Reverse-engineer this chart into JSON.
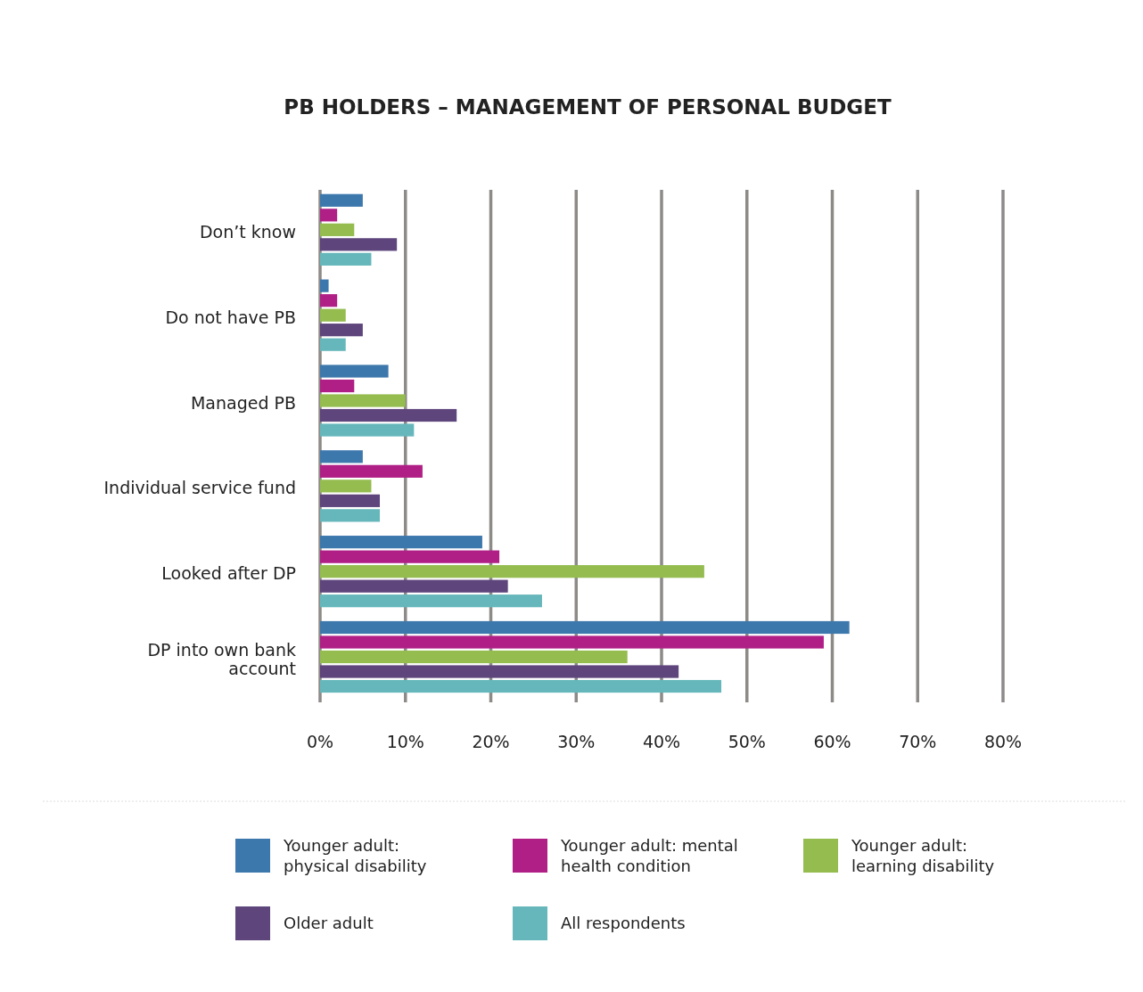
{
  "chart_data": {
    "type": "bar",
    "orientation": "horizontal",
    "title": "PB HOLDERS – MANAGEMENT OF PERSONAL BUDGET",
    "categories": [
      "Don’t know",
      "Do not have PB",
      "Managed PB",
      "Individual service fund",
      "Looked after DP",
      "DP into own bank account"
    ],
    "series": [
      {
        "name": "Younger adult: physical disability",
        "color": "#3d78ad",
        "values": [
          5,
          1,
          8,
          5,
          19,
          62
        ]
      },
      {
        "name": "Younger adult: mental health condition",
        "color": "#b01f86",
        "values": [
          2,
          2,
          4,
          12,
          21,
          59
        ]
      },
      {
        "name": "Younger adult: learning disability",
        "color": "#94bc4f",
        "values": [
          4,
          3,
          10,
          6,
          45,
          36
        ]
      },
      {
        "name": "Older adult",
        "color": "#5e457c",
        "values": [
          9,
          5,
          16,
          7,
          22,
          42
        ]
      },
      {
        "name": "All respondents",
        "color": "#66b7bb",
        "values": [
          6,
          3,
          11,
          7,
          26,
          47
        ]
      }
    ],
    "xlim": [
      0,
      80
    ],
    "xticks": [
      {
        "value": 0,
        "label": "0%"
      },
      {
        "value": 10,
        "label": "10%"
      },
      {
        "value": 20,
        "label": "20%"
      },
      {
        "value": 30,
        "label": "30%"
      },
      {
        "value": 40,
        "label": "40%"
      },
      {
        "value": 50,
        "label": "50%"
      },
      {
        "value": 60,
        "label": "60%"
      },
      {
        "value": 70,
        "label": "70%"
      },
      {
        "value": 80,
        "label": "80%"
      }
    ],
    "grid": "x",
    "legend": "bottom"
  }
}
